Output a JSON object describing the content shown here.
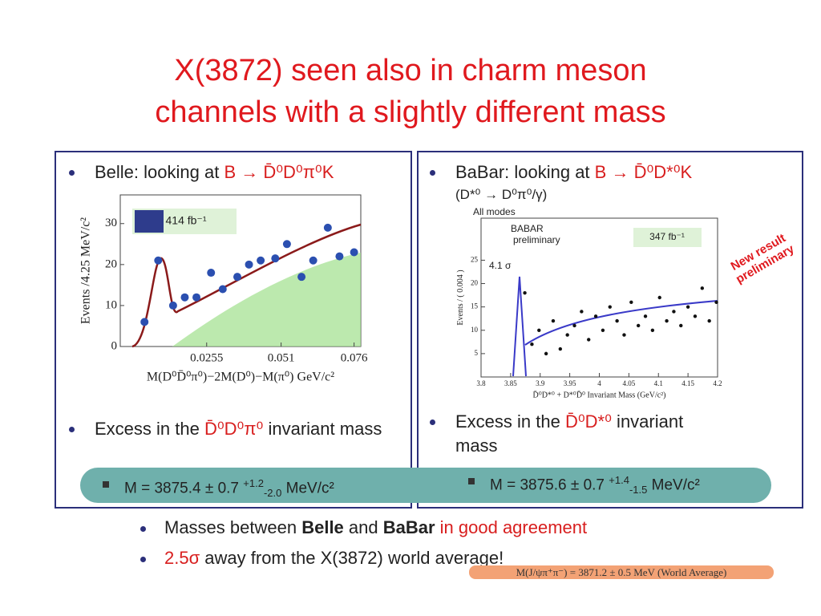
{
  "title": {
    "line1": "X(3872) seen also in charm meson",
    "line2": "channels with a slightly different mass"
  },
  "left_panel": {
    "heading": [
      "Belle: looking at ",
      "B → D̄⁰D⁰π⁰K"
    ],
    "excess": [
      "Excess in the ",
      "D̄⁰D⁰π⁰",
      " invariant mass"
    ],
    "mass": {
      "text": "M = 3875.4 ± 0.7",
      "sup": "+1.2",
      "sub": "-2.0",
      "unit": "MeV/c²"
    }
  },
  "right_panel": {
    "heading": [
      "BaBar: looking at ",
      "B → D̄⁰D*⁰K"
    ],
    "subheading": "(D*⁰ → D⁰π⁰/γ)",
    "excess": [
      "Excess in the ",
      "D̄⁰D*⁰",
      " invariant mass"
    ],
    "mass": {
      "text": "M = 3875.6 ± 0.7",
      "sup": "+1.4",
      "sub": "-1.5",
      "unit": "MeV/c²"
    },
    "note": "New result preliminary"
  },
  "bullets": [
    [
      "Masses between ",
      "Belle",
      " and ",
      "BaBar",
      " in good agreement"
    ],
    [
      "2.5σ",
      " away from the X(3872) world average!"
    ]
  ],
  "world_average": "M(J/ψπ⁺π⁻) = 3871.2 ± 0.5 MeV (World Average)",
  "chart_data": [
    {
      "type": "scatter",
      "ylabel": "Events /4.25 MeV/c²",
      "xlabel": "M(D⁰D̄⁰π⁰)−2M(D⁰)−M(π⁰) GeV/c²",
      "annotations": [
        "414 fb⁻¹"
      ],
      "color": "#2b4fb0",
      "x": [
        0.0042,
        0.0089,
        0.014,
        0.018,
        0.022,
        0.027,
        0.031,
        0.036,
        0.04,
        0.044,
        0.049,
        0.053,
        0.058,
        0.062,
        0.067,
        0.071,
        0.076
      ],
      "y": [
        6,
        21,
        10,
        12,
        12,
        18,
        14,
        17,
        20,
        21,
        21.5,
        25,
        17,
        21,
        29,
        22,
        23
      ],
      "xlim": [
        -0.0041,
        0.0783
      ],
      "ylim": [
        0,
        37
      ],
      "xticks": [
        0.0255,
        0.051,
        0.076
      ],
      "yticks": [
        0,
        10,
        20,
        30
      ]
    },
    {
      "type": "scatter",
      "ylabel": "Events / ( 0.004 )",
      "xlabel": "D̄⁰D*⁰ + D*⁰D̄⁰ Invariant Mass (GeV/c²)",
      "annotations": [
        "All modes",
        "BABAR",
        "preliminary",
        "347 fb⁻¹",
        "4.1 σ"
      ],
      "color": "#111111",
      "x": [
        3.874,
        3.886,
        3.898,
        3.91,
        3.922,
        3.934,
        3.946,
        3.958,
        3.97,
        3.982,
        3.994,
        4.006,
        4.018,
        4.03,
        4.042,
        4.054,
        4.066,
        4.078,
        4.09,
        4.102,
        4.114,
        4.126,
        4.138,
        4.15,
        4.162,
        4.174,
        4.186,
        4.198
      ],
      "y": [
        18,
        7,
        10,
        5,
        12,
        6,
        9,
        11,
        14,
        8,
        13,
        10,
        15,
        12,
        9,
        16,
        11,
        13,
        10,
        17,
        12,
        14,
        11,
        15,
        13,
        19,
        12,
        16
      ],
      "xlim": [
        3.8,
        4.2
      ],
      "ylim": [
        0,
        34
      ],
      "xticks": [
        3.8,
        3.85,
        3.9,
        3.95,
        4,
        4.05,
        4.1,
        4.15,
        4.2
      ],
      "yticks": [
        5,
        10,
        15,
        20,
        25
      ]
    }
  ]
}
